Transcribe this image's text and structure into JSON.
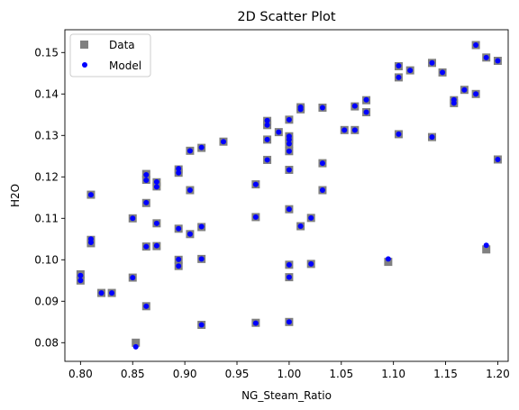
{
  "chart_data": {
    "type": "scatter",
    "title": "2D Scatter Plot",
    "xlabel": "NG_Steam_Ratio",
    "ylabel": "H2O",
    "xlim": [
      0.785,
      1.21
    ],
    "ylim": [
      0.0755,
      0.1555
    ],
    "xticks": [
      0.8,
      0.85,
      0.9,
      0.95,
      1.0,
      1.05,
      1.1,
      1.15,
      1.2
    ],
    "xtick_labels": [
      "0.80",
      "0.85",
      "0.90",
      "0.95",
      "1.00",
      "1.05",
      "1.10",
      "1.15",
      "1.20"
    ],
    "yticks": [
      0.08,
      0.09,
      0.1,
      0.11,
      0.12,
      0.13,
      0.14,
      0.15
    ],
    "ytick_labels": [
      "0.08",
      "0.09",
      "0.10",
      "0.11",
      "0.12",
      "0.13",
      "0.14",
      "0.15"
    ],
    "grid": false,
    "legend_position": "top-left",
    "series": [
      {
        "name": "Data",
        "marker": "square",
        "color": "#808080",
        "points": [
          [
            0.8,
            0.0965
          ],
          [
            0.8,
            0.095
          ],
          [
            0.81,
            0.1157
          ],
          [
            0.81,
            0.1048
          ],
          [
            0.81,
            0.104
          ],
          [
            0.82,
            0.092
          ],
          [
            0.83,
            0.092
          ],
          [
            0.85,
            0.11
          ],
          [
            0.85,
            0.0957
          ],
          [
            0.853,
            0.08
          ],
          [
            0.863,
            0.1207
          ],
          [
            0.863,
            0.1193
          ],
          [
            0.863,
            0.1137
          ],
          [
            0.863,
            0.1032
          ],
          [
            0.863,
            0.0888
          ],
          [
            0.873,
            0.1187
          ],
          [
            0.873,
            0.1177
          ],
          [
            0.873,
            0.1088
          ],
          [
            0.873,
            0.1033
          ],
          [
            0.894,
            0.1218
          ],
          [
            0.894,
            0.121
          ],
          [
            0.894,
            0.1075
          ],
          [
            0.894,
            0.1
          ],
          [
            0.894,
            0.0985
          ],
          [
            0.905,
            0.1263
          ],
          [
            0.905,
            0.1168
          ],
          [
            0.905,
            0.1062
          ],
          [
            0.916,
            0.127
          ],
          [
            0.916,
            0.1079
          ],
          [
            0.916,
            0.1002
          ],
          [
            0.916,
            0.0843
          ],
          [
            0.937,
            0.1285
          ],
          [
            0.968,
            0.1182
          ],
          [
            0.968,
            0.1103
          ],
          [
            0.968,
            0.0848
          ],
          [
            0.979,
            0.1335
          ],
          [
            0.979,
            0.1325
          ],
          [
            0.979,
            0.129
          ],
          [
            0.979,
            0.1241
          ],
          [
            0.99,
            0.1308
          ],
          [
            1.0,
            0.1338
          ],
          [
            1.0,
            0.1298
          ],
          [
            1.0,
            0.129
          ],
          [
            1.0,
            0.128
          ],
          [
            1.0,
            0.1262
          ],
          [
            1.0,
            0.1217
          ],
          [
            1.0,
            0.1122
          ],
          [
            1.0,
            0.0988
          ],
          [
            1.0,
            0.0958
          ],
          [
            1.0,
            0.085
          ],
          [
            1.011,
            0.1368
          ],
          [
            1.011,
            0.1363
          ],
          [
            1.011,
            0.1081
          ],
          [
            1.021,
            0.1101
          ],
          [
            1.021,
            0.099
          ],
          [
            1.032,
            0.1367
          ],
          [
            1.032,
            0.1233
          ],
          [
            1.032,
            0.1168
          ],
          [
            1.053,
            0.1313
          ],
          [
            1.063,
            0.137
          ],
          [
            1.063,
            0.1313
          ],
          [
            1.074,
            0.1385
          ],
          [
            1.074,
            0.1356
          ],
          [
            1.095,
            0.0995
          ],
          [
            1.105,
            0.1467
          ],
          [
            1.105,
            0.144
          ],
          [
            1.105,
            0.1303
          ],
          [
            1.116,
            0.1457
          ],
          [
            1.137,
            0.1475
          ],
          [
            1.137,
            0.1296
          ],
          [
            1.147,
            0.1452
          ],
          [
            1.158,
            0.1385
          ],
          [
            1.158,
            0.1378
          ],
          [
            1.168,
            0.141
          ],
          [
            1.179,
            0.1518
          ],
          [
            1.179,
            0.14
          ],
          [
            1.189,
            0.1488
          ],
          [
            1.189,
            0.1025
          ],
          [
            1.2,
            0.148
          ],
          [
            1.2,
            0.1242
          ]
        ]
      },
      {
        "name": "Model",
        "marker": "circle",
        "color": "#0000ff",
        "points": [
          [
            0.8,
            0.0962
          ],
          [
            0.8,
            0.095
          ],
          [
            0.81,
            0.1157
          ],
          [
            0.81,
            0.105
          ],
          [
            0.81,
            0.1042
          ],
          [
            0.82,
            0.092
          ],
          [
            0.83,
            0.092
          ],
          [
            0.85,
            0.11
          ],
          [
            0.85,
            0.0957
          ],
          [
            0.853,
            0.079
          ],
          [
            0.863,
            0.1205
          ],
          [
            0.863,
            0.1192
          ],
          [
            0.863,
            0.1138
          ],
          [
            0.863,
            0.1032
          ],
          [
            0.863,
            0.0888
          ],
          [
            0.873,
            0.1188
          ],
          [
            0.873,
            0.1176
          ],
          [
            0.873,
            0.1088
          ],
          [
            0.873,
            0.1034
          ],
          [
            0.894,
            0.122
          ],
          [
            0.894,
            0.121
          ],
          [
            0.894,
            0.1075
          ],
          [
            0.894,
            0.1001
          ],
          [
            0.894,
            0.0985
          ],
          [
            0.905,
            0.1263
          ],
          [
            0.905,
            0.1168
          ],
          [
            0.905,
            0.1062
          ],
          [
            0.916,
            0.1271
          ],
          [
            0.916,
            0.108
          ],
          [
            0.916,
            0.1002
          ],
          [
            0.916,
            0.0843
          ],
          [
            0.937,
            0.1285
          ],
          [
            0.968,
            0.1182
          ],
          [
            0.968,
            0.1103
          ],
          [
            0.968,
            0.0847
          ],
          [
            0.979,
            0.1336
          ],
          [
            0.979,
            0.1325
          ],
          [
            0.979,
            0.129
          ],
          [
            0.979,
            0.1241
          ],
          [
            0.99,
            0.1308
          ],
          [
            1.0,
            0.1338
          ],
          [
            1.0,
            0.1298
          ],
          [
            1.0,
            0.129
          ],
          [
            1.0,
            0.128
          ],
          [
            1.0,
            0.1262
          ],
          [
            1.0,
            0.1217
          ],
          [
            1.0,
            0.1122
          ],
          [
            1.0,
            0.0988
          ],
          [
            1.0,
            0.0958
          ],
          [
            1.0,
            0.085
          ],
          [
            1.011,
            0.1368
          ],
          [
            1.011,
            0.1363
          ],
          [
            1.011,
            0.1081
          ],
          [
            1.021,
            0.1101
          ],
          [
            1.021,
            0.099
          ],
          [
            1.032,
            0.1367
          ],
          [
            1.032,
            0.1233
          ],
          [
            1.032,
            0.1168
          ],
          [
            1.053,
            0.1313
          ],
          [
            1.063,
            0.1371
          ],
          [
            1.063,
            0.1313
          ],
          [
            1.074,
            0.1386
          ],
          [
            1.074,
            0.1356
          ],
          [
            1.095,
            0.1002
          ],
          [
            1.105,
            0.1468
          ],
          [
            1.105,
            0.144
          ],
          [
            1.105,
            0.1303
          ],
          [
            1.116,
            0.1457
          ],
          [
            1.137,
            0.1475
          ],
          [
            1.137,
            0.1296
          ],
          [
            1.147,
            0.1452
          ],
          [
            1.158,
            0.1386
          ],
          [
            1.158,
            0.1378
          ],
          [
            1.168,
            0.141
          ],
          [
            1.179,
            0.1518
          ],
          [
            1.179,
            0.14
          ],
          [
            1.189,
            0.1488
          ],
          [
            1.189,
            0.1035
          ],
          [
            1.2,
            0.148
          ],
          [
            1.2,
            0.1242
          ]
        ]
      }
    ]
  }
}
